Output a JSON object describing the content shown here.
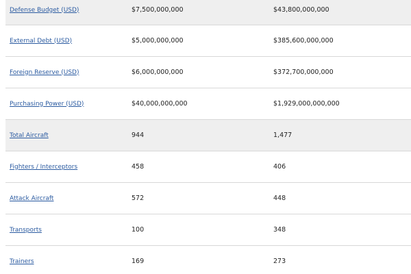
{
  "rows": [
    {
      "label": "Defense Budget (USD)",
      "col1": "$7,500,000,000",
      "col2": "$43,800,000,000",
      "shaded": true
    },
    {
      "label": "External Debt (USD)",
      "col1": "$5,000,000,000",
      "col2": "$385,600,000,000",
      "shaded": false
    },
    {
      "label": "Foreign Reserve (USD)",
      "col1": "$6,000,000,000",
      "col2": "$372,700,000,000",
      "shaded": false
    },
    {
      "label": "Purchasing Power (USD)",
      "col1": "$40,000,000,000",
      "col2": "$1,929,000,000,000",
      "shaded": false
    },
    {
      "label": "Total Aircraft",
      "col1": "944",
      "col2": "1,477",
      "shaded": true
    },
    {
      "label": "Fighters / Interceptors",
      "col1": "458",
      "col2": "406",
      "shaded": false
    },
    {
      "label": "Attack Aircraft",
      "col1": "572",
      "col2": "448",
      "shaded": false
    },
    {
      "label": "Transports",
      "col1": "100",
      "col2": "348",
      "shaded": false
    },
    {
      "label": "Trainers",
      "col1": "169",
      "col2": "273",
      "shaded": false
    }
  ]
}
